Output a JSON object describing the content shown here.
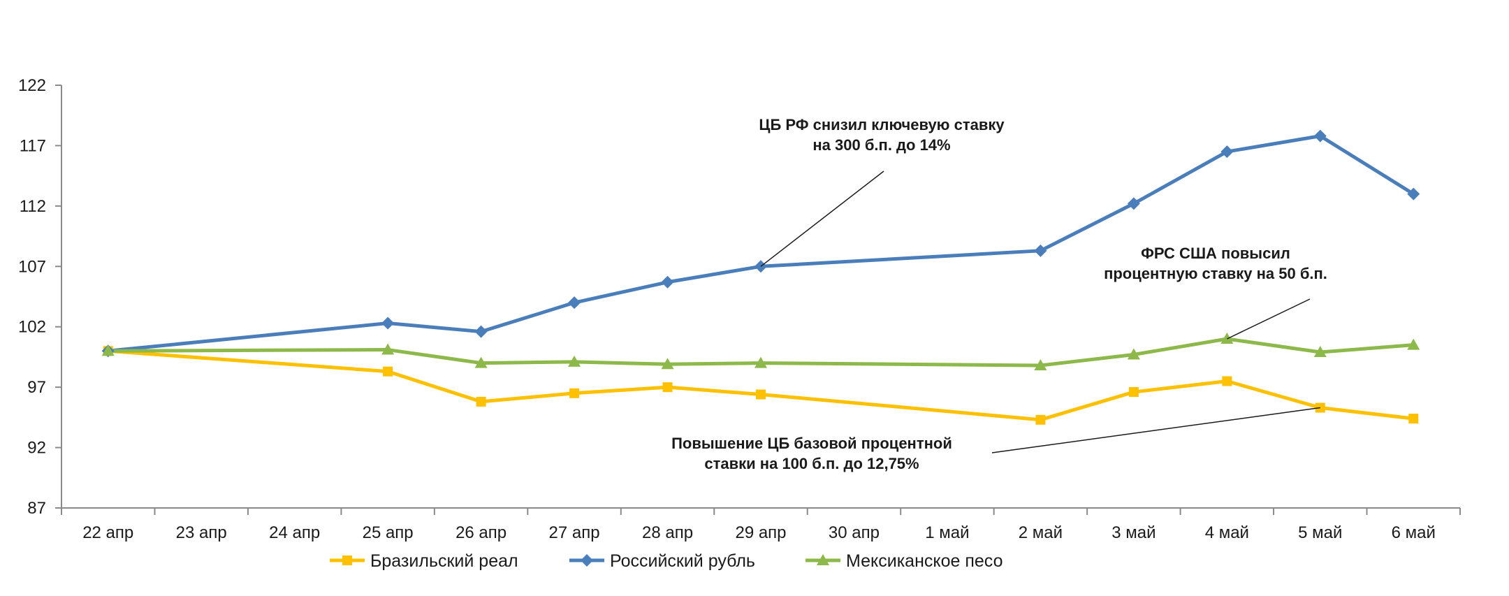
{
  "chart_data": {
    "type": "line",
    "categories": [
      "22 апр",
      "23 апр",
      "24 апр",
      "25 апр",
      "26 апр",
      "27 апр",
      "28 апр",
      "29 апр",
      "30 апр",
      "1 май",
      "2 май",
      "3 май",
      "4 май",
      "5 май",
      "6 май"
    ],
    "ylim": [
      87,
      122
    ],
    "yticks": [
      87,
      92,
      97,
      102,
      107,
      112,
      117,
      122
    ],
    "grid": false,
    "legend_position": "bottom",
    "series": [
      {
        "name": "Бразильский реал",
        "color": "#FFC000",
        "marker": "square",
        "values": [
          100,
          null,
          null,
          98.3,
          95.8,
          96.5,
          97.0,
          96.4,
          null,
          null,
          94.3,
          96.6,
          97.5,
          95.3,
          94.4
        ]
      },
      {
        "name": "Российский рубль",
        "color": "#4A7EBB",
        "marker": "diamond",
        "values": [
          100,
          null,
          null,
          102.3,
          101.6,
          104.0,
          105.7,
          107.0,
          null,
          null,
          108.3,
          112.2,
          116.5,
          117.8,
          113.0
        ]
      },
      {
        "name": "Мексиканское песо",
        "color": "#8DB84A",
        "marker": "triangle",
        "values": [
          100,
          null,
          null,
          100.1,
          99.0,
          99.1,
          98.9,
          99.0,
          null,
          null,
          98.8,
          99.7,
          101.0,
          99.9,
          100.5
        ]
      }
    ],
    "annotations": [
      {
        "text": [
          "ЦБ РФ снизил ключевую ставку",
          "на 300 б.п. до 14%"
        ],
        "target_series": 1,
        "target_category": "29 апр"
      },
      {
        "text": [
          "ФРС США повысил",
          "процентную ставку на 50 б.п."
        ],
        "target_series": 2,
        "target_category": "4 май"
      },
      {
        "text": [
          "Повышение ЦБ базовой процентной",
          "ставки на 100 б.п. до 12,75%"
        ],
        "target_series": 0,
        "target_category": "5 май"
      }
    ]
  }
}
